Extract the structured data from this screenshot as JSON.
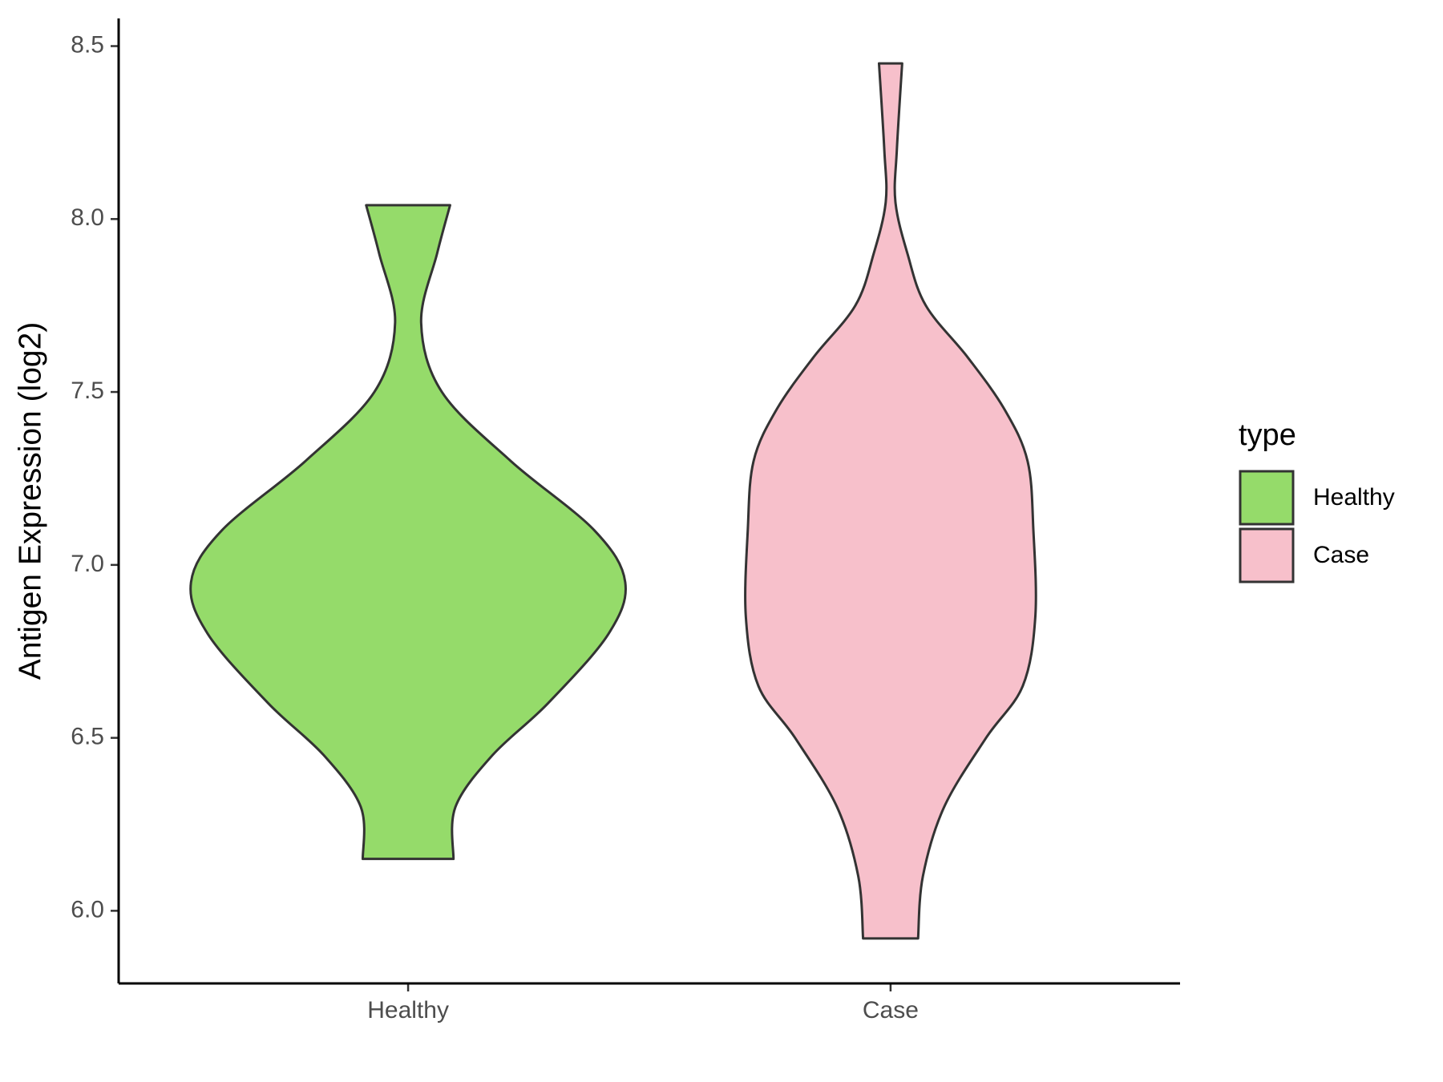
{
  "chart_data": {
    "type": "violin",
    "ylabel": "Antigen Expression (log2)",
    "categories": [
      "Healthy",
      "Case"
    ],
    "legend_title": "type",
    "legend": "right",
    "ylim": [
      5.79,
      8.58
    ],
    "yticks": [
      {
        "value": 6,
        "label": "6.0"
      },
      6.5,
      {
        "value": 7,
        "label": "7.0"
      },
      7.5,
      {
        "value": 8,
        "label": "8.0"
      },
      8.5
    ],
    "series": [
      {
        "name": "Healthy",
        "color": "#95db6a",
        "y": [
          8.04,
          7.9,
          7.7,
          7.5,
          7.3,
          7.1,
          6.95,
          6.8,
          6.6,
          6.45,
          6.3,
          6.15
        ],
        "width": [
          0.087,
          0.06,
          0.027,
          0.07,
          0.213,
          0.386,
          0.45,
          0.415,
          0.29,
          0.175,
          0.098,
          0.094
        ]
      },
      {
        "name": "Case",
        "color": "#f7c0cb",
        "y": [
          8.45,
          8.2,
          8.05,
          7.9,
          7.75,
          7.6,
          7.45,
          7.3,
          7.1,
          6.85,
          6.65,
          6.5,
          6.3,
          6.1,
          5.92
        ],
        "width": [
          0.024,
          0.013,
          0.01,
          0.035,
          0.073,
          0.16,
          0.236,
          0.284,
          0.296,
          0.3,
          0.274,
          0.198,
          0.111,
          0.067,
          0.057
        ]
      }
    ]
  }
}
